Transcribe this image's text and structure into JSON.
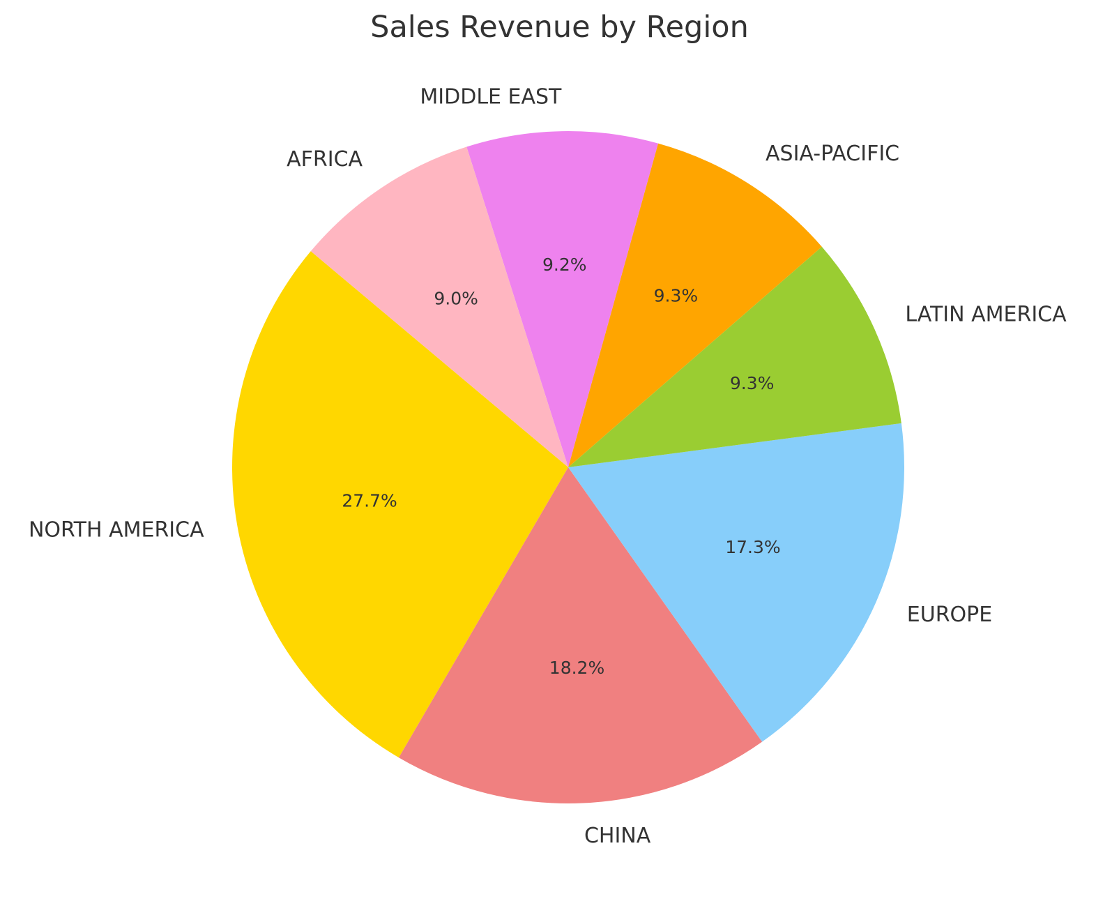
{
  "chart_data": {
    "type": "pie",
    "title": "Sales Revenue by Region",
    "slices": [
      {
        "label": "NORTH AMERICA",
        "value": 27.7,
        "pct_label": "27.7%",
        "color": "#FFD700"
      },
      {
        "label": "CHINA",
        "value": 18.2,
        "pct_label": "18.2%",
        "color": "#F08080"
      },
      {
        "label": "EUROPE",
        "value": 17.3,
        "pct_label": "17.3%",
        "color": "#87CEFA"
      },
      {
        "label": "LATIN AMERICA",
        "value": 9.3,
        "pct_label": "9.3%",
        "color": "#9ACD32"
      },
      {
        "label": "ASIA-PACIFIC",
        "value": 9.3,
        "pct_label": "9.3%",
        "color": "#FFA500"
      },
      {
        "label": "MIDDLE EAST",
        "value": 9.2,
        "pct_label": "9.2%",
        "color": "#EE82EE"
      },
      {
        "label": "AFRICA",
        "value": 9.0,
        "pct_label": "9.0%",
        "color": "#FFB6C1"
      }
    ],
    "start_angle_deg": 140,
    "direction": "counterclockwise",
    "legend": "none"
  }
}
